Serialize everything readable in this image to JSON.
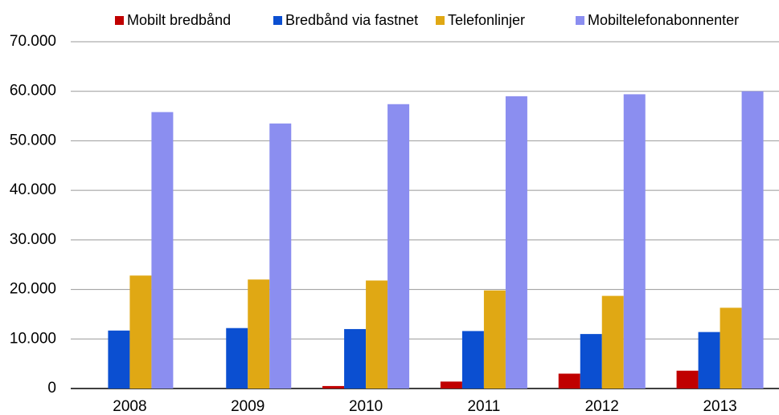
{
  "chart_data": {
    "type": "bar",
    "categories": [
      "2008",
      "2009",
      "2010",
      "2011",
      "2012",
      "2013"
    ],
    "series": [
      {
        "name": "Mobilt bredbånd",
        "color": "#c00000",
        "values": [
          0,
          0,
          500,
          1400,
          3000,
          3600
        ]
      },
      {
        "name": "Bredbånd via fastnet",
        "color": "#0b4fd1",
        "values": [
          11700,
          12200,
          12000,
          11600,
          11000,
          11400
        ]
      },
      {
        "name": "Telefonlinjer",
        "color": "#e0a814",
        "values": [
          22800,
          22000,
          21800,
          19800,
          18700,
          16300
        ]
      },
      {
        "name": "Mobiltelefonabonnenter",
        "color": "#8b8ef0",
        "values": [
          55800,
          53500,
          57400,
          59000,
          59400,
          60000
        ]
      }
    ],
    "ylim": [
      0,
      70000
    ],
    "yticks": [
      0,
      {
        "value": 10000,
        "label": "10.000"
      },
      {
        "value": 20000,
        "label": "20.000"
      },
      {
        "value": 30000,
        "label": "30.000"
      },
      {
        "value": 40000,
        "label": "40.000"
      },
      {
        "value": 50000,
        "label": "50.000"
      },
      {
        "value": 60000,
        "label": "60.000"
      },
      {
        "value": 70000,
        "label": "70.000"
      }
    ],
    "grid": true,
    "legend": "top"
  }
}
